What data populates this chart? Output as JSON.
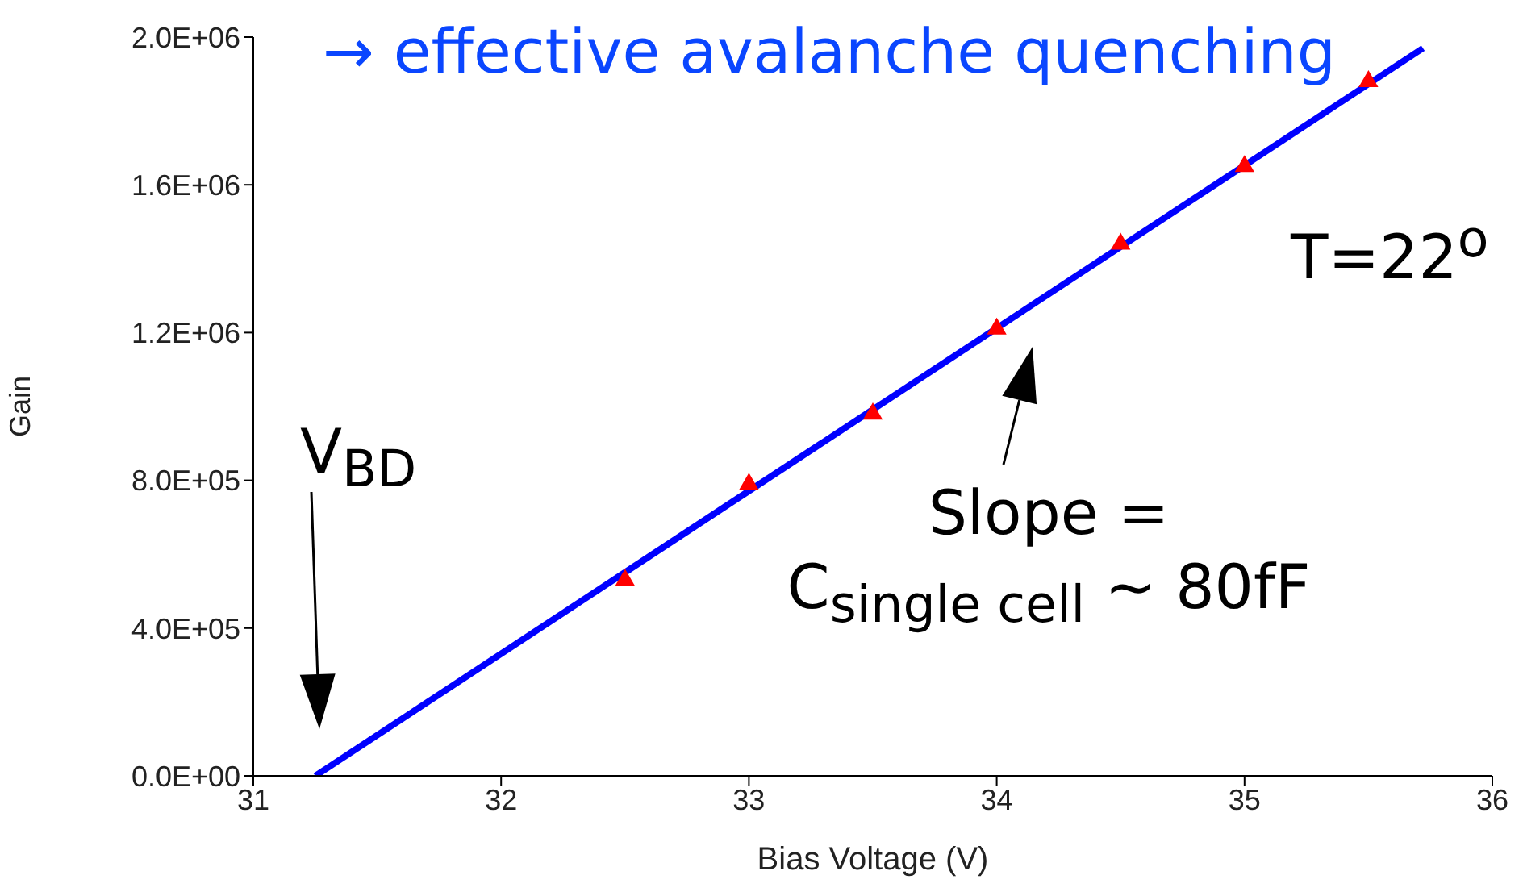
{
  "chart_data": {
    "type": "scatter",
    "xlabel": "Bias Voltage (V)",
    "ylabel": "Gain",
    "xlim": [
      31,
      36
    ],
    "xticks": [
      31,
      32,
      33,
      34,
      35,
      36
    ],
    "ylim": [
      0,
      2000000
    ],
    "yticks": [
      {
        "value": 0,
        "label": "0.0E+00"
      },
      {
        "value": 400000,
        "label": "4.0E+05"
      },
      {
        "value": 800000,
        "label": "8.0E+05"
      },
      {
        "value": 1200000,
        "label": "1.2E+06"
      },
      {
        "value": 1600000,
        "label": "1.6E+06"
      },
      {
        "value": 2000000,
        "label": "2.0E+06"
      }
    ],
    "series": [
      {
        "color": "#ff0000",
        "marker": "triangle",
        "x": [
          32.5,
          33,
          33.5,
          34,
          34.5,
          35,
          35.5
        ],
        "values": [
          530000,
          790000,
          980000,
          1210000,
          1440000,
          1650000,
          1880000
        ]
      },
      {
        "type": "line",
        "color": "#0000ff",
        "marker": "none",
        "x": [
          31.25,
          35.72
        ],
        "values": [
          0,
          1970000
        ]
      }
    ],
    "annotations": [
      "→ effective avalanche quenching",
      "T=22$^{o}$",
      "V$_{BD}$",
      "Slope =\nC$_{single cell}$ ~ 80fF"
    ]
  }
}
